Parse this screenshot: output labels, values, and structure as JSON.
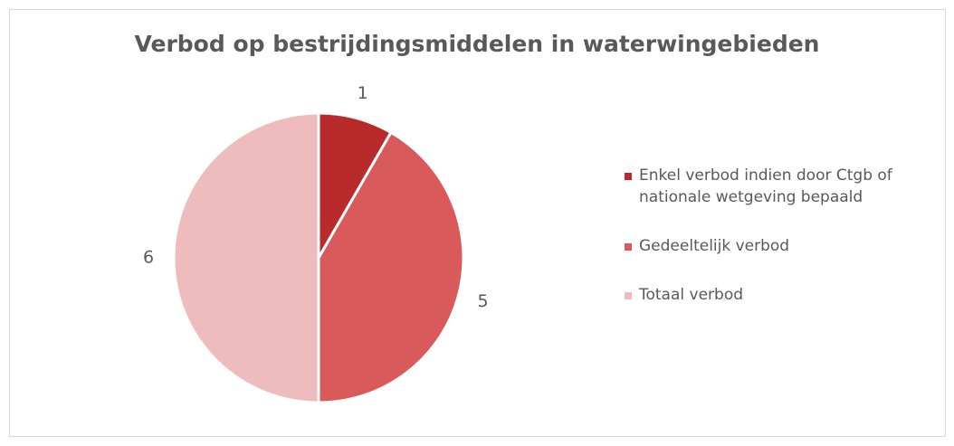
{
  "chart_data": {
    "type": "pie",
    "title": "Verbod op bestrijdingsmiddelen in waterwingebieden",
    "categories": [
      "Enkel verbod indien door Ctgb of nationale wetgeving bepaald",
      "Gedeeltelijk verbod",
      "Totaal verbod"
    ],
    "values": [
      1,
      5,
      6
    ],
    "colors": [
      "#b92b2b",
      "#d95a5a",
      "#efbcbe"
    ],
    "legend": "right"
  }
}
